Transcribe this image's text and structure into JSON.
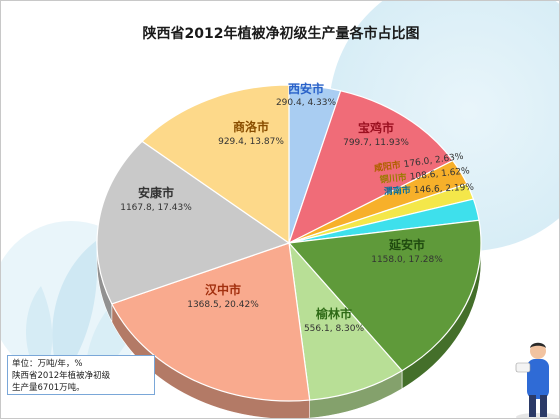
{
  "colors": {
    "background_blob": "#dbeef7",
    "leaf": "#cfe8f3"
  },
  "note": {
    "unit": "单位：万吨/年，%",
    "line2": "陕西省2012年植被净初级",
    "line3": "生产量6701万吨。"
  },
  "chart_data": {
    "type": "pie",
    "title": "陕西省2012年植被净初级生产量各市占比图",
    "total": 6701,
    "unit": "万吨/年",
    "slices": [
      {
        "name": "西安市",
        "value": 290.4,
        "percent": 4.33,
        "label": "290.4, 4.33%",
        "color": "#a9cdf2",
        "label_color": "#2a62c9"
      },
      {
        "name": "宝鸡市",
        "value": 799.7,
        "percent": 11.93,
        "label": "799.7, 11.93%",
        "color": "#f06c78",
        "label_color": "#9b1020"
      },
      {
        "name": "咸阳市",
        "value": 176.0,
        "percent": 2.63,
        "label": "176.0, 2.63%",
        "color": "#f7b02a",
        "label_color": "#b06000"
      },
      {
        "name": "铜川市",
        "value": 108.6,
        "percent": 1.62,
        "label": "108.6, 1.62%",
        "color": "#f4e74a",
        "label_color": "#9a7a00"
      },
      {
        "name": "渭南市",
        "value": 146.6,
        "percent": 2.19,
        "label": "146.6, 2.19%",
        "color": "#3ee0ec",
        "label_color": "#0b6f9a"
      },
      {
        "name": "延安市",
        "value": 1158.0,
        "percent": 17.28,
        "label": "1158.0, 17.28%",
        "color": "#5f9a3a",
        "label_color": "#1f4a0f"
      },
      {
        "name": "榆林市",
        "value": 556.1,
        "percent": 8.3,
        "label": "556.1, 8.30%",
        "color": "#b8df96",
        "label_color": "#2e6a16"
      },
      {
        "name": "汉中市",
        "value": 1368.5,
        "percent": 20.42,
        "label": "1368.5, 20.42%",
        "color": "#f9aa8e",
        "label_color": "#a3300f"
      },
      {
        "name": "安康市",
        "value": 1167.8,
        "percent": 17.43,
        "label": "1167.8, 17.43%",
        "color": "#c9c9c9",
        "label_color": "#333333"
      },
      {
        "name": "商洛市",
        "value": 929.4,
        "percent": 13.87,
        "label": "929.4, 13.87%",
        "color": "#fdd98a",
        "label_color": "#8a4e00"
      }
    ]
  }
}
